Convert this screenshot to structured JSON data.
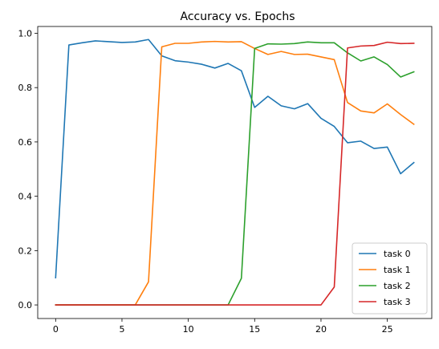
{
  "chart_data": {
    "type": "line",
    "title": "Accuracy vs. Epochs",
    "xlabel": "",
    "ylabel": "",
    "xlim": [
      -1.35,
      28.35
    ],
    "ylim": [
      -0.05,
      1.025
    ],
    "xticks": [
      0,
      5,
      10,
      15,
      20,
      25
    ],
    "yticks": [
      0.0,
      0.2,
      0.4,
      0.6,
      0.8,
      1.0
    ],
    "ytick_labels": [
      "0.0",
      "0.2",
      "0.4",
      "0.6",
      "0.8",
      "1.0"
    ],
    "grid": false,
    "legend_position": "lower-right",
    "x": [
      0,
      1,
      2,
      3,
      4,
      5,
      6,
      7,
      8,
      9,
      10,
      11,
      12,
      13,
      14,
      15,
      16,
      17,
      18,
      19,
      20,
      21,
      22,
      23,
      24,
      25,
      26,
      27
    ],
    "series": [
      {
        "name": "task 0",
        "color": "#1f77b4",
        "values": [
          0.1,
          0.957,
          0.965,
          0.972,
          0.969,
          0.966,
          0.968,
          0.977,
          0.917,
          0.899,
          0.894,
          0.886,
          0.872,
          0.889,
          0.862,
          0.727,
          0.768,
          0.733,
          0.722,
          0.741,
          0.687,
          0.657,
          0.597,
          0.603,
          0.576,
          0.581,
          0.483,
          0.524
        ]
      },
      {
        "name": "task 1",
        "color": "#ff7f0e",
        "values": [
          0.0,
          0.0,
          0.0,
          0.0,
          0.0,
          0.0,
          0.0,
          0.085,
          0.95,
          0.963,
          0.963,
          0.968,
          0.97,
          0.968,
          0.969,
          0.944,
          0.922,
          0.933,
          0.922,
          0.923,
          0.913,
          0.903,
          0.745,
          0.714,
          0.707,
          0.74,
          0.701,
          0.665
        ]
      },
      {
        "name": "task 2",
        "color": "#2ca02c",
        "values": [
          0.0,
          0.0,
          0.0,
          0.0,
          0.0,
          0.0,
          0.0,
          0.0,
          0.0,
          0.0,
          0.0,
          0.0,
          0.0,
          0.0,
          0.098,
          0.944,
          0.961,
          0.96,
          0.962,
          0.968,
          0.965,
          0.965,
          0.928,
          0.898,
          0.913,
          0.885,
          0.839,
          0.858
        ]
      },
      {
        "name": "task 3",
        "color": "#d62728",
        "values": [
          0.0,
          0.0,
          0.0,
          0.0,
          0.0,
          0.0,
          0.0,
          0.0,
          0.0,
          0.0,
          0.0,
          0.0,
          0.0,
          0.0,
          0.0,
          0.0,
          0.0,
          0.0,
          0.0,
          0.0,
          0.0,
          0.066,
          0.946,
          0.953,
          0.955,
          0.967,
          0.962,
          0.963
        ]
      }
    ]
  }
}
